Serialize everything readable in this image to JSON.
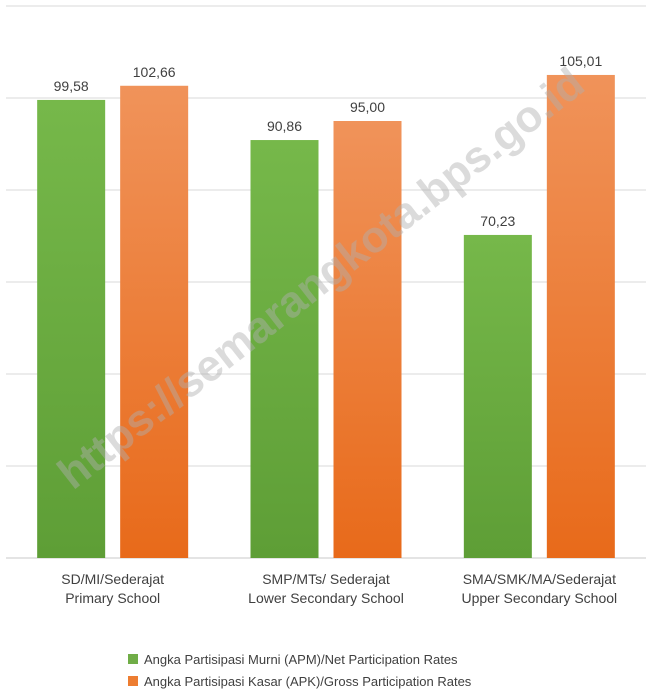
{
  "chart_data": {
    "type": "bar",
    "categories": [
      [
        "SD/MI/Sederajat",
        "Primary School"
      ],
      [
        "SMP/MTs/ Sederajat",
        "Lower Secondary School"
      ],
      [
        "SMA/SMK/MA/Sederajat",
        "Upper Secondary School"
      ]
    ],
    "series": [
      {
        "name": "Angka Partisipasi Murni (APM)/Net Participation Rates",
        "values": [
          99.58,
          90.86,
          70.23
        ],
        "labels": [
          "99,58",
          "90,86",
          "70,23"
        ],
        "color": "#70ad47"
      },
      {
        "name": "Angka Partisipasi Kasar (APK)/Gross Participation Rates",
        "values": [
          102.66,
          95.0,
          105.01
        ],
        "labels": [
          "102,66",
          "95,00",
          "105,01"
        ],
        "color": "#ed7d31"
      }
    ],
    "ylim": [
      0,
      120
    ],
    "grid": true,
    "legend_position": "bottom",
    "watermark": "https://semarangkota.bps.go.id"
  }
}
